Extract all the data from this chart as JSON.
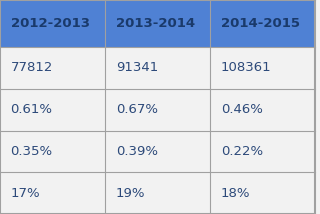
{
  "headers": [
    "2012-2013",
    "2013-2014",
    "2014-2015"
  ],
  "rows": [
    [
      "77812",
      "91341",
      "108361"
    ],
    [
      "0.61%",
      "0.67%",
      "0.46%"
    ],
    [
      "0.35%",
      "0.39%",
      "0.22%"
    ],
    [
      "17%",
      "19%",
      "18%"
    ]
  ],
  "header_bg": "#4f81d4",
  "header_text_color": "#1a3a6b",
  "row_bg": "#f2f2f2",
  "cell_text_color": "#2d4a7a",
  "grid_color": "#a0a0a0",
  "header_font_size": 9.5,
  "cell_font_size": 9.5,
  "fig_bg": "#f2f2f2"
}
